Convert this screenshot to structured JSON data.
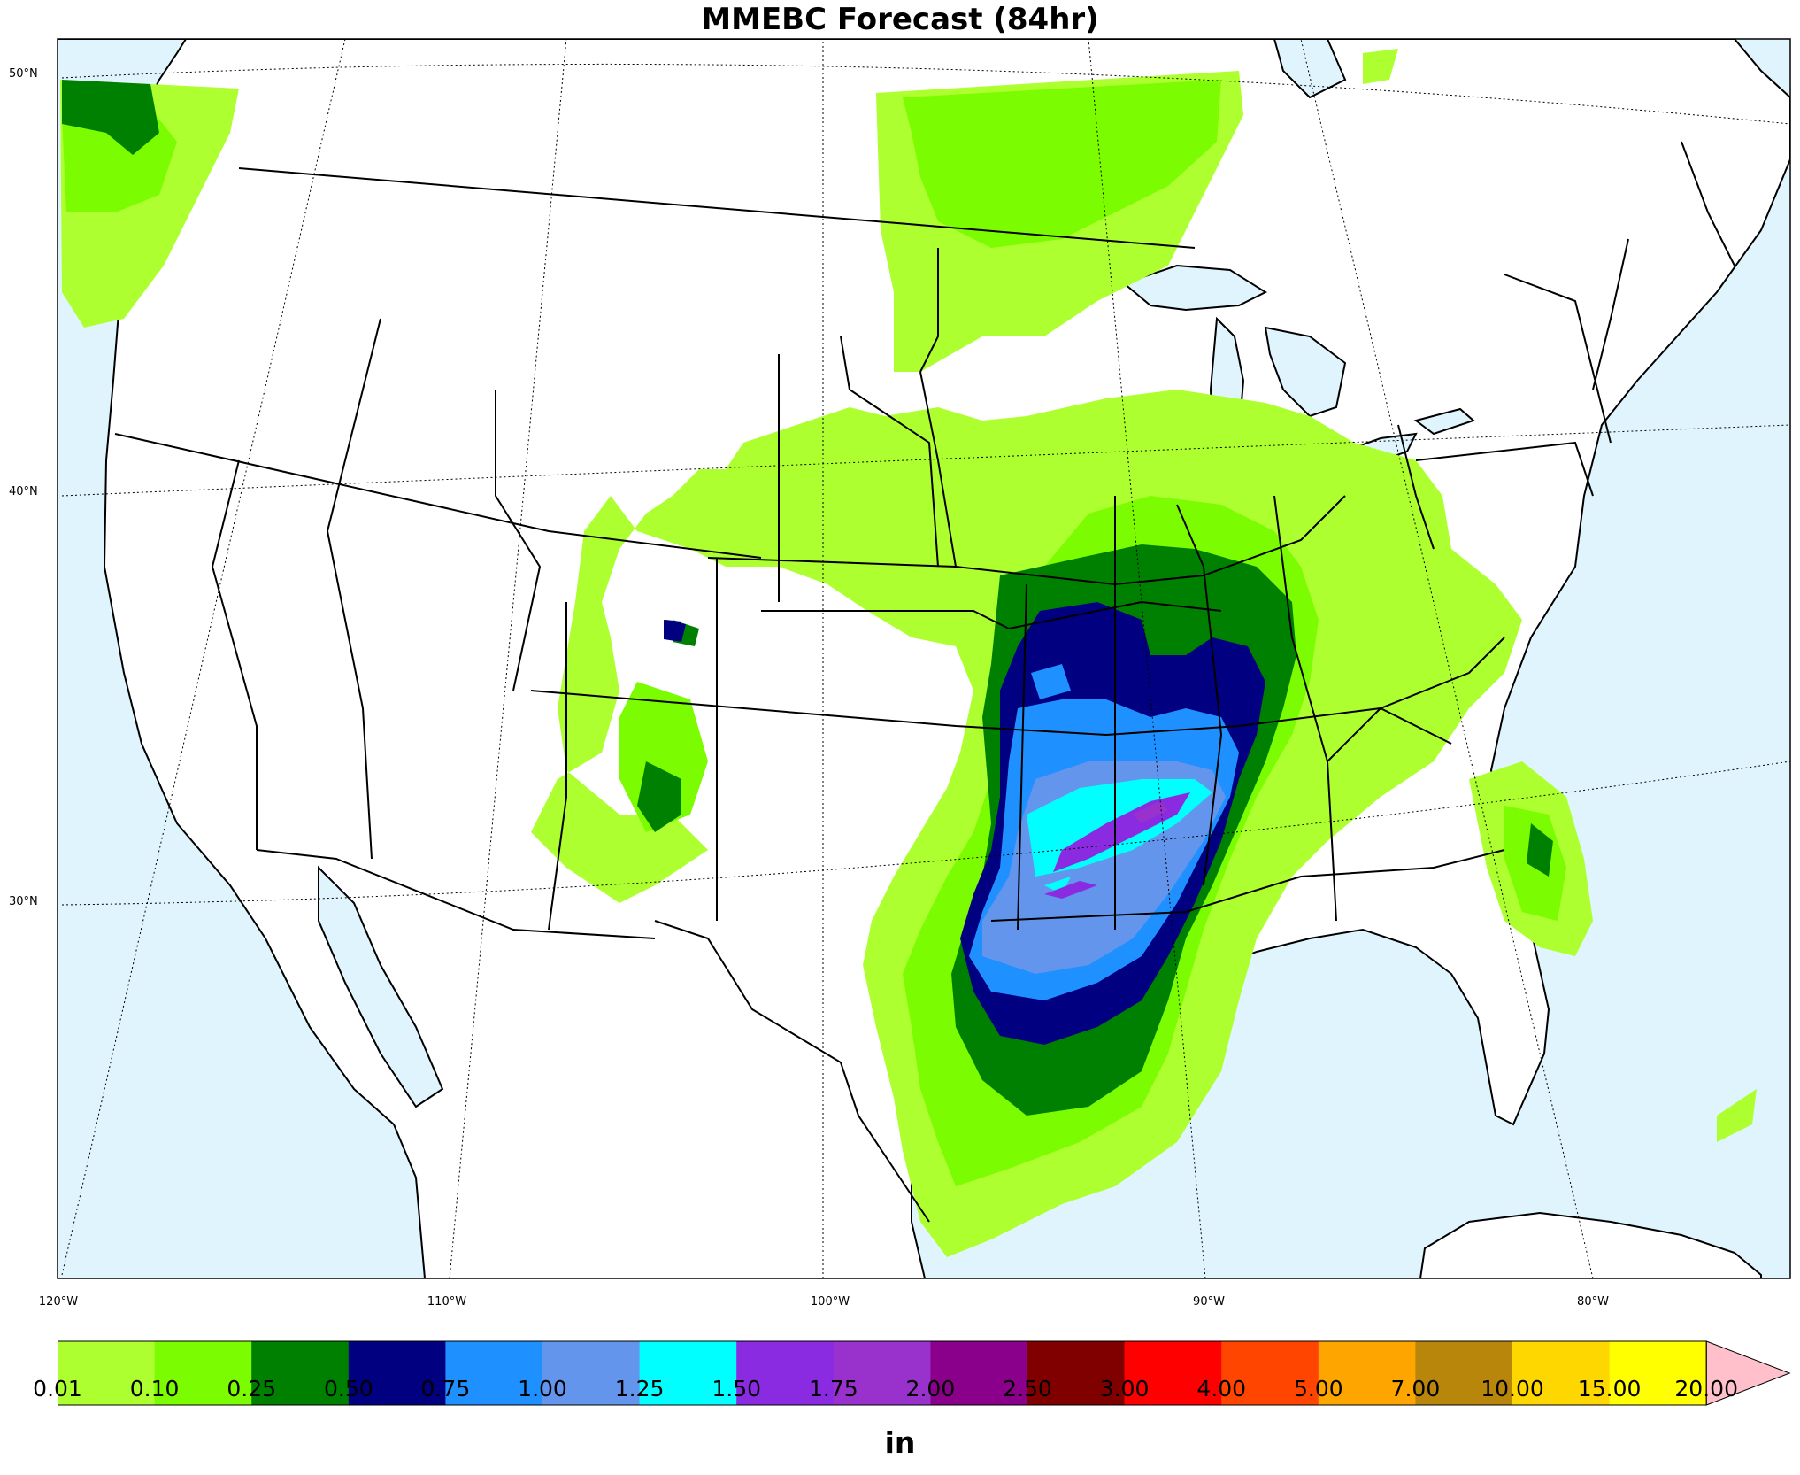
{
  "title": "MMEBC Forecast (84hr)",
  "lat_labels": [
    "50°N",
    "40°N",
    "30°N"
  ],
  "lon_labels": [
    "120°W",
    "110°W",
    "100°W",
    "90°W",
    "80°W"
  ],
  "colorbar": {
    "unit": "in",
    "levels": [
      "0.01",
      "0.10",
      "0.25",
      "0.50",
      "0.75",
      "1.00",
      "1.25",
      "1.50",
      "1.75",
      "2.00",
      "2.50",
      "3.00",
      "4.00",
      "5.00",
      "7.00",
      "10.00",
      "15.00",
      "20.00"
    ],
    "colors": [
      "#adff2f",
      "#7cfc00",
      "#008000",
      "#000080",
      "#1e90ff",
      "#6495ed",
      "#00ffff",
      "#8a2be2",
      "#9932cc",
      "#8b008b",
      "#800000",
      "#ff0000",
      "#ff4500",
      "#ffa500",
      "#b8860b",
      "#ffd700",
      "#ffff00"
    ],
    "extend_color": "#ffc0cb"
  },
  "colors": {
    "ocean": "#dff4fc",
    "land": "#ffffff",
    "border": "#000000"
  }
}
